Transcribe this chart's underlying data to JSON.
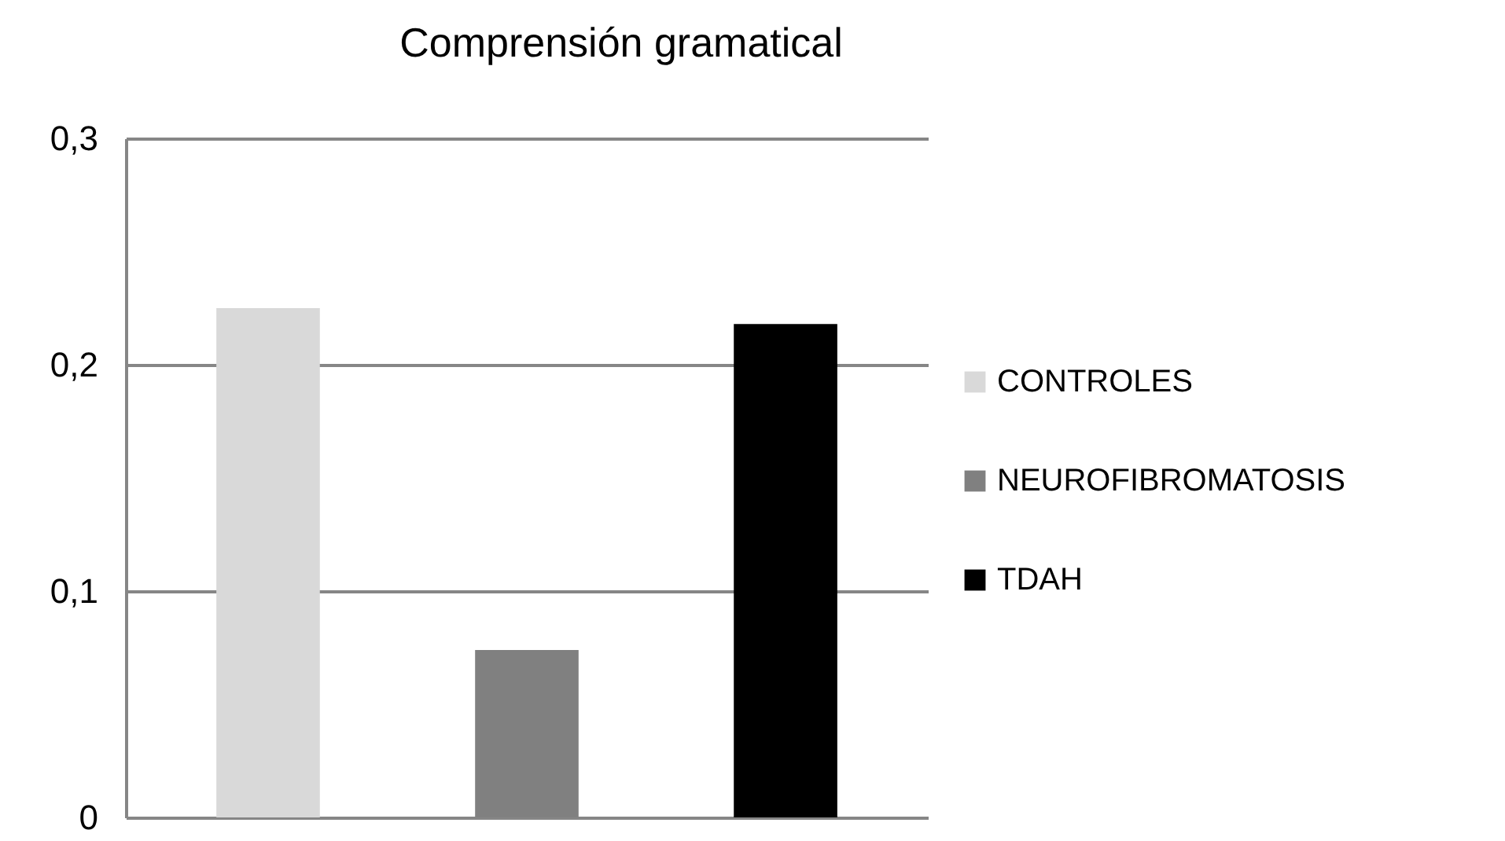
{
  "chart_data": {
    "type": "bar",
    "title": "Comprensión gramatical",
    "categories": [
      null,
      null,
      null
    ],
    "series": [
      {
        "name": "CONTROLES",
        "color": "#d9d9d9",
        "values": [
          0.225,
          null,
          null
        ]
      },
      {
        "name": "NEUROFIBROMATOSIS",
        "color": "#808080",
        "values": [
          null,
          0.074,
          null
        ]
      },
      {
        "name": "TDAH",
        "color": "#000000",
        "values": [
          null,
          null,
          0.218
        ]
      }
    ],
    "ylim": [
      0,
      0.3
    ],
    "yticks": [
      0,
      {
        "value": 0.1,
        "label": "0,1"
      },
      {
        "value": 0.2,
        "label": "0,2"
      },
      {
        "value": 0.3,
        "label": "0,3"
      }
    ],
    "grid": "y",
    "legend": "right"
  }
}
